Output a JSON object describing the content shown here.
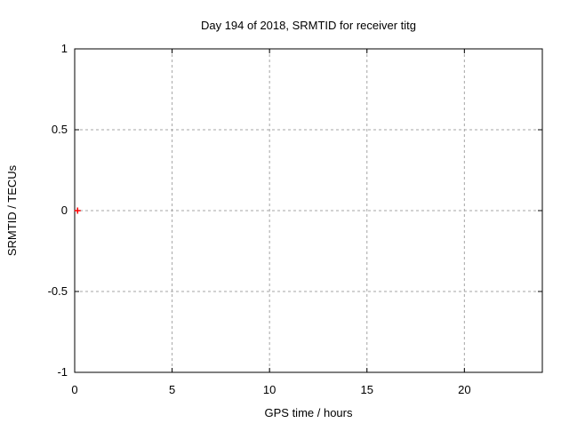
{
  "page": {
    "background": "#ffffff"
  },
  "chart_data": {
    "type": "scatter",
    "title": "Day 194 of 2018, SRMTID for receiver titg",
    "xlabel": "GPS time / hours",
    "ylabel": "SRMTID / TECUs",
    "xlim": [
      0,
      24
    ],
    "ylim": [
      -1,
      1
    ],
    "xticks": [
      0,
      5,
      10,
      15,
      20
    ],
    "yticks": [
      -1,
      -0.5,
      0,
      0.5,
      1
    ],
    "grid": true,
    "legend": "none",
    "series": [
      {
        "name": "SRMTID",
        "marker": "plus",
        "color": "#ff0000",
        "points": [
          {
            "x": 0.15,
            "y": 0
          }
        ]
      }
    ]
  },
  "colors": {
    "background": "#ffffff",
    "axis": "#000000",
    "grid": "#a6a6a6",
    "text": "#000000",
    "marker": "#ff0000"
  }
}
